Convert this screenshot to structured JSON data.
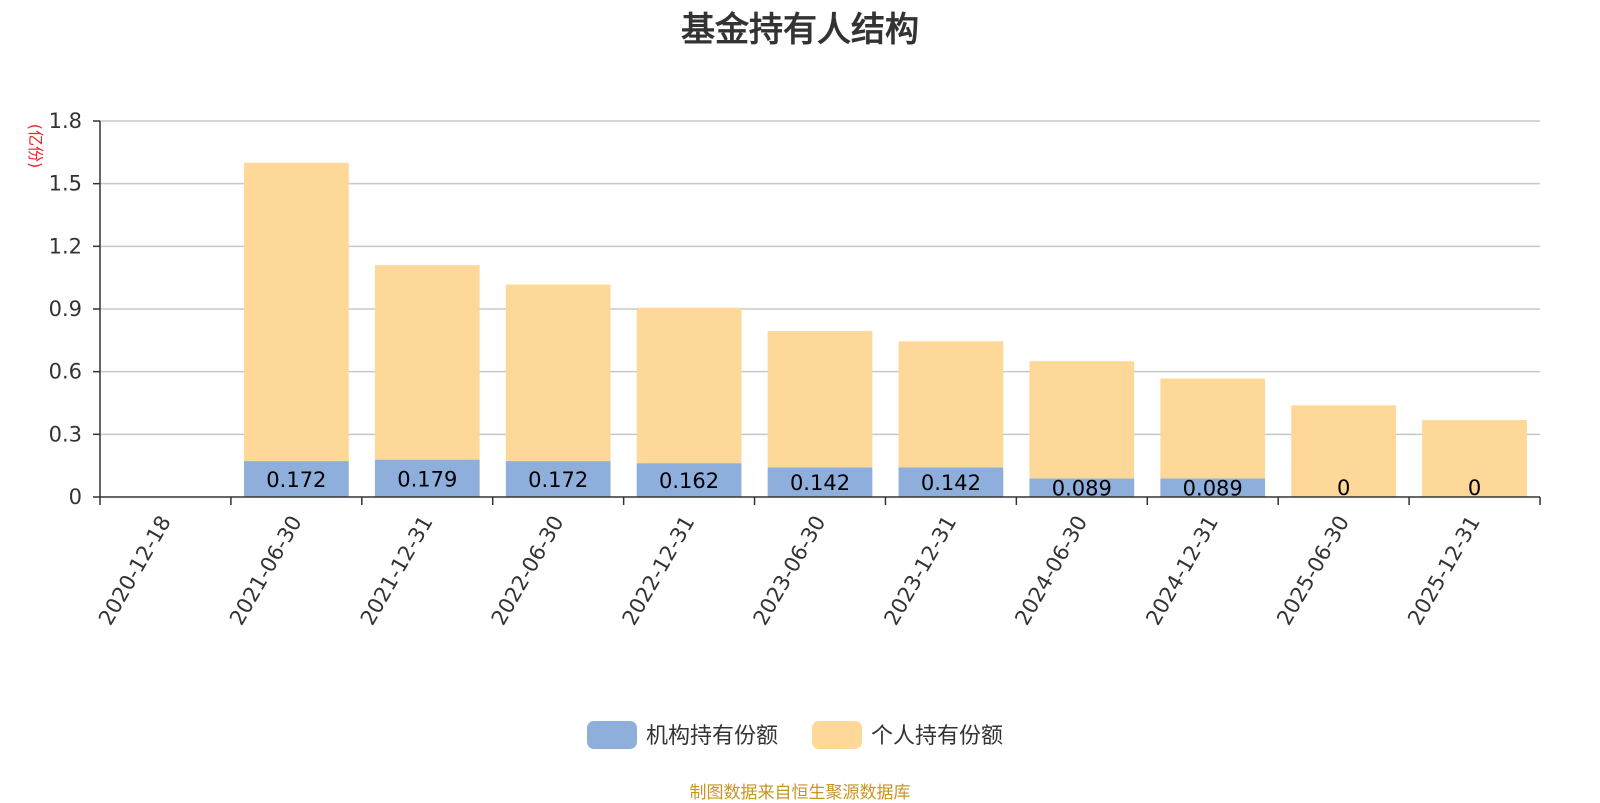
{
  "chart_data": {
    "type": "bar",
    "stacked": true,
    "title": "基金持有人结构",
    "ylabel": "(亿份)",
    "xlabel": "",
    "ylim": [
      0,
      1.8
    ],
    "yticks": [
      0,
      0.3,
      0.6,
      0.9,
      1.2,
      1.5,
      1.8
    ],
    "ytick_labels": [
      "0",
      "0.3",
      "0.6",
      "0.9",
      "1.2",
      "1.5",
      "1.8"
    ],
    "grid": true,
    "legend_position": "bottom-center",
    "categories": [
      "2020-12-18",
      "2021-06-30",
      "2021-12-31",
      "2022-06-30",
      "2022-12-31",
      "2023-06-30",
      "2023-12-31",
      "2024-06-30",
      "2024-12-31",
      "2025-06-30",
      "2025-12-31"
    ],
    "series": [
      {
        "name": "机构持有份额",
        "color": "#8eaedc",
        "values": [
          0,
          0.172,
          0.179,
          0.172,
          0.162,
          0.142,
          0.142,
          0.089,
          0.089,
          0,
          0
        ],
        "labels": [
          "",
          "0.172",
          "0.179",
          "0.172",
          "0.162",
          "0.142",
          "0.142",
          "0.089",
          "0.089",
          "0",
          "0"
        ]
      },
      {
        "name": "个人持有份额",
        "color": "#fdd898",
        "values": [
          0,
          1.428,
          0.931,
          0.845,
          0.744,
          0.652,
          0.603,
          0.561,
          0.478,
          0.439,
          0.368
        ]
      }
    ],
    "source": "制图数据来自恒生聚源数据库"
  },
  "colors": {
    "axis": "#333333",
    "grid": "#c8c8c8",
    "unit": "#e8262d",
    "source": "#c8961e"
  }
}
